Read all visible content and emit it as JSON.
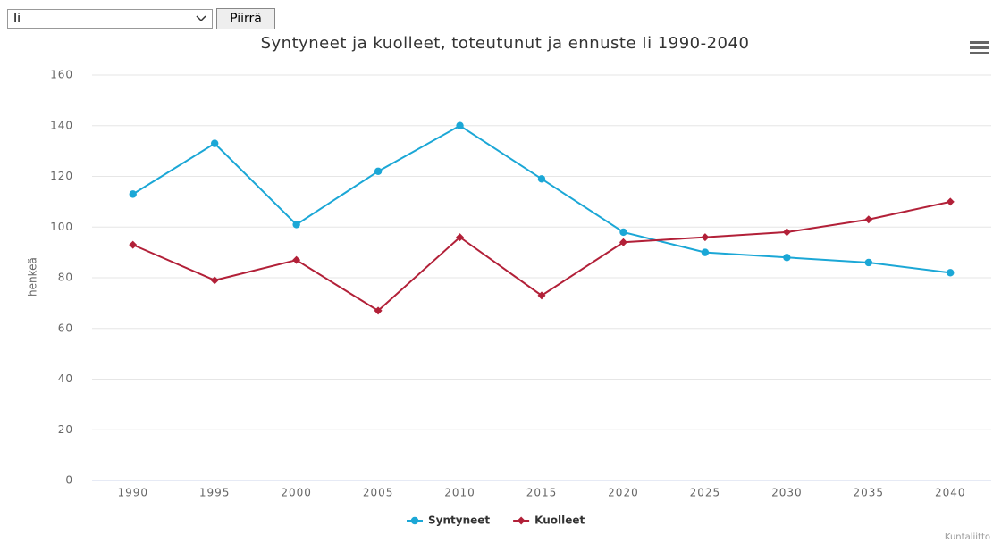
{
  "controls": {
    "select_value": "Ii",
    "button": "Piirrä"
  },
  "credits": "Kuntaliitto",
  "chart_data": {
    "type": "line",
    "title": "Syntyneet ja kuolleet, toteutunut ja ennuste Ii 1990-2040",
    "y_label": "henkeä",
    "categories": [
      "1990",
      "1995",
      "2000",
      "2005",
      "2010",
      "2015",
      "2020",
      "2025",
      "2030",
      "2035",
      "2040"
    ],
    "series": [
      {
        "name": "Syntyneet",
        "color": "#1ba7d6",
        "marker": "circle",
        "values": [
          113,
          133,
          101,
          122,
          140,
          119,
          98,
          90,
          88,
          86,
          82
        ]
      },
      {
        "name": "Kuolleet",
        "color": "#b22038",
        "marker": "diamond",
        "values": [
          93,
          79,
          87,
          67,
          96,
          73,
          94,
          96,
          98,
          103,
          110
        ]
      }
    ],
    "ylim": [
      0,
      160
    ],
    "yticks": [
      0,
      20,
      40,
      60,
      80,
      100,
      120,
      140,
      160
    ],
    "grid": true,
    "legend": "bottom"
  }
}
